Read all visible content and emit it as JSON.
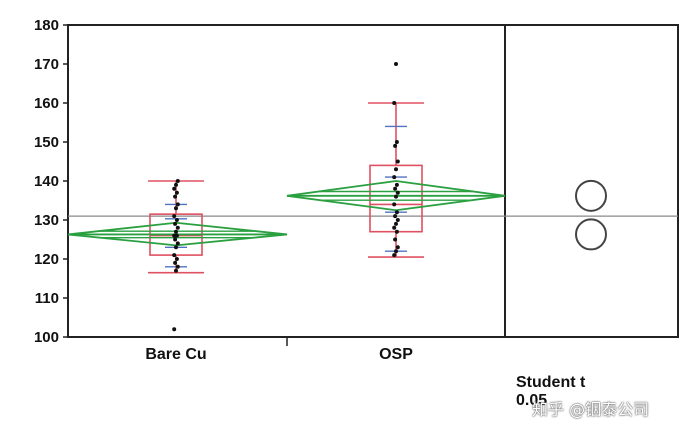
{
  "chart_data": {
    "type": "box",
    "title": "",
    "xlabel": "",
    "ylabel": "",
    "ylim": [
      100,
      180
    ],
    "yticks": [
      100,
      110,
      120,
      130,
      140,
      150,
      160,
      170,
      180
    ],
    "grand_mean": 131,
    "categories": [
      "Bare Cu",
      "OSP"
    ],
    "groups": [
      {
        "name": "Bare Cu",
        "whisker_low": 116.5,
        "q1": 121,
        "median": 126,
        "q3": 131.5,
        "whisker_high": 140,
        "mean": 126.3,
        "ci_low": 123.5,
        "ci_high": 129.3,
        "points": [
          102,
          117,
          118,
          119,
          120,
          121,
          123,
          124,
          125,
          126,
          126,
          127,
          128,
          129,
          130,
          131,
          133,
          134,
          136,
          137,
          138,
          139,
          140
        ]
      },
      {
        "name": "OSP",
        "whisker_low": 120.5,
        "q1": 127,
        "median": 134,
        "q3": 144,
        "whisker_high": 160,
        "mean": 136.2,
        "ci_low": 132.5,
        "ci_high": 140,
        "points": [
          121,
          122,
          123,
          125,
          127,
          128,
          129,
          130,
          131,
          132,
          134,
          136,
          137,
          138,
          139,
          141,
          143,
          145,
          149,
          150,
          160,
          170
        ]
      }
    ],
    "comparison_circles": [
      {
        "center": 136.2
      },
      {
        "center": 126.3
      }
    ],
    "colors": {
      "box": "#e05060",
      "diamond": "#2aa040",
      "quantile": "#5070c0",
      "points": "#111111",
      "frame": "#222222",
      "mean_line": "#888888"
    }
  },
  "annotation": {
    "line1": "Student t",
    "line2": "0.05"
  },
  "watermark": "知乎 @铟泰公司"
}
